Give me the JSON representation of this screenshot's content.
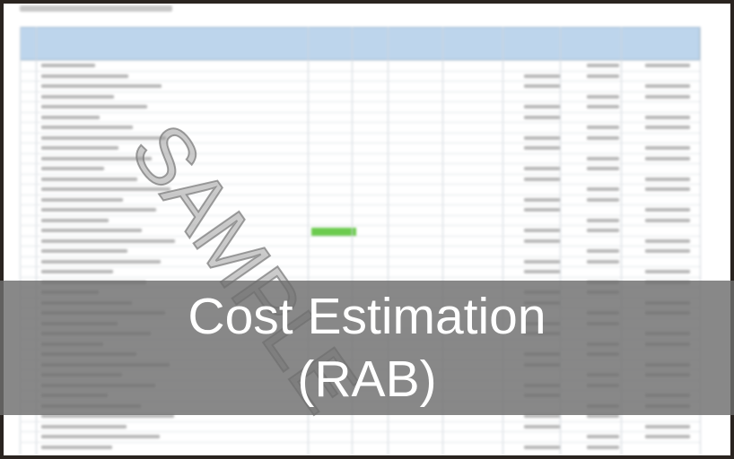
{
  "watermark": "SAMPLE",
  "overlay": {
    "line1": "Cost Estimation",
    "line2": "(RAB)"
  },
  "colors": {
    "header": "#bdd5ec",
    "highlight": "#6ccb4e",
    "overlay": "#6e6e6e"
  }
}
